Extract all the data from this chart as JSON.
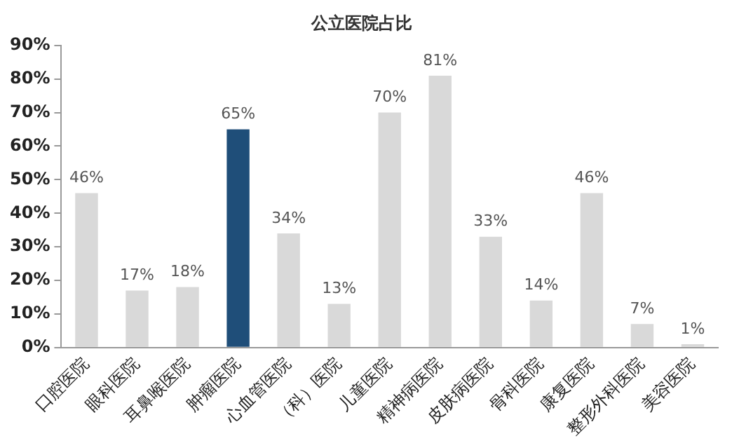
{
  "chart_data": {
    "type": "bar",
    "title": "公立医院占比",
    "categories": [
      "口腔医院",
      "眼科医院",
      "耳鼻喉医院",
      "肿瘤医院",
      "心血管医院",
      "（科）医院",
      "儿童医院",
      "精神病医院",
      "皮肤病医院",
      "骨科医院",
      "康复医院",
      "整形外科医院",
      "美容医院"
    ],
    "values": [
      46,
      17,
      18,
      65,
      34,
      13,
      70,
      81,
      33,
      14,
      46,
      7,
      1
    ],
    "colors": [
      "#d9d9d9",
      "#d9d9d9",
      "#d9d9d9",
      "#1f4e79",
      "#d9d9d9",
      "#d9d9d9",
      "#d9d9d9",
      "#d9d9d9",
      "#d9d9d9",
      "#d9d9d9",
      "#d9d9d9",
      "#d9d9d9",
      "#d9d9d9"
    ],
    "value_labels": [
      "46%",
      "17%",
      "18%",
      "65%",
      "34%",
      "13%",
      "70%",
      "81%",
      "33%",
      "14%",
      "46%",
      "7%",
      "1%"
    ],
    "ylim": [
      0,
      90
    ],
    "yticks": [
      {
        "value": 0,
        "label": "0%"
      },
      {
        "value": 10,
        "label": "10%"
      },
      {
        "value": 20,
        "label": "20%"
      },
      {
        "value": 30,
        "label": "30%"
      },
      {
        "value": 40,
        "label": "40%"
      },
      {
        "value": 50,
        "label": "50%"
      },
      {
        "value": 60,
        "label": "60%"
      },
      {
        "value": 70,
        "label": "70%"
      },
      {
        "value": 80,
        "label": "80%"
      },
      {
        "value": 90,
        "label": "90%"
      }
    ],
    "grid": false,
    "legend": false
  }
}
